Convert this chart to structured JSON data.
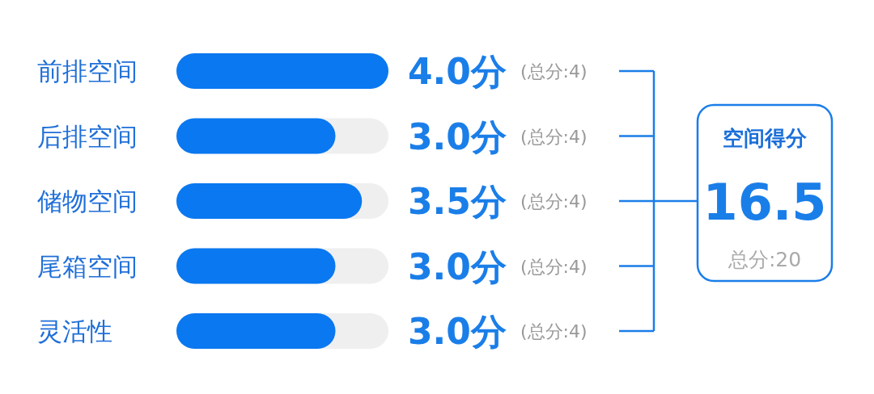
{
  "chart_data": {
    "type": "bar",
    "orientation": "horizontal",
    "categories": [
      "前排空间",
      "后排空间",
      "储物空间",
      "尾箱空间",
      "灵活性"
    ],
    "values": [
      4.0,
      3.0,
      3.5,
      3.0,
      3.0
    ],
    "value_labels": [
      "4.0分",
      "3.0分",
      "3.5分",
      "3.0分",
      "3.0分"
    ],
    "color": "#0a78f0",
    "xlim": [
      0,
      4
    ],
    "annotations": [
      "(总分:4)",
      "(总分:4)",
      "(总分:4)",
      "(总分:4)",
      "(总分:4)",
      "空间得分",
      "16.5",
      "总分:20"
    ]
  }
}
